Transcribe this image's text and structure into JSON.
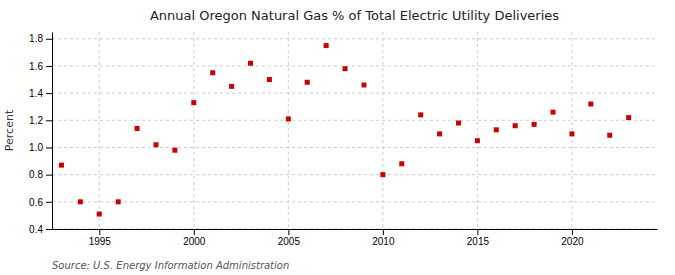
{
  "chart_data": {
    "type": "scatter",
    "title": "Annual Oregon Natural Gas % of Total Electric Utility Deliveries",
    "ylabel": "Percent",
    "annotations": [
      "Source: U.S. Energy Information Administration"
    ],
    "color": "#cc0000",
    "marker": "square",
    "grid": true,
    "xlim": [
      1992.5,
      2024.5
    ],
    "ylim": [
      0.4,
      1.85
    ],
    "xticks": [
      1995,
      2000,
      2005,
      2010,
      2015,
      2020
    ],
    "yticks": [
      0.4,
      0.6,
      0.8,
      {
        "value": 1.0,
        "label": "1.0"
      },
      1.2,
      1.4,
      1.6,
      1.8
    ],
    "x": [
      1993,
      1994,
      1995,
      1996,
      1997,
      1998,
      1999,
      2000,
      2001,
      2002,
      2003,
      2004,
      2005,
      2006,
      2007,
      2008,
      2009,
      2010,
      2011,
      2012,
      2013,
      2014,
      2015,
      2016,
      2017,
      2018,
      2019,
      2020,
      2021,
      2022,
      2023
    ],
    "values": [
      0.87,
      0.6,
      0.51,
      0.6,
      1.14,
      1.02,
      0.98,
      1.33,
      1.55,
      1.45,
      1.62,
      1.5,
      1.21,
      1.48,
      1.75,
      1.58,
      1.46,
      0.8,
      0.88,
      1.24,
      1.1,
      1.18,
      1.05,
      1.13,
      1.16,
      1.17,
      1.26,
      1.1,
      1.32,
      1.09,
      1.22
    ]
  }
}
